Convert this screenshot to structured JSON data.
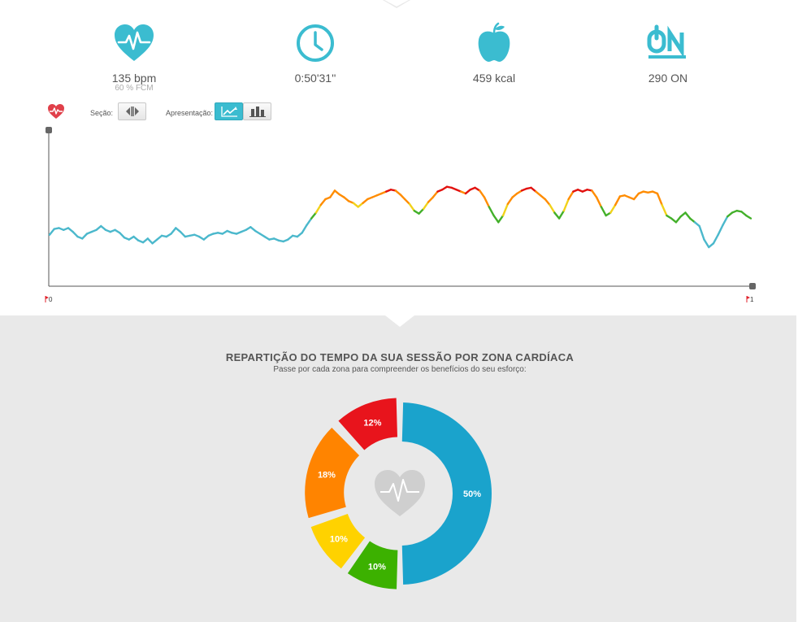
{
  "stats": [
    {
      "id": "heart-rate",
      "icon": "heart-pulse-icon",
      "value": "135 bpm",
      "sub": "60 % FCM"
    },
    {
      "id": "duration",
      "icon": "clock-icon",
      "value": "0:50'31''"
    },
    {
      "id": "calories",
      "icon": "apple-icon",
      "value": "459 kcal"
    },
    {
      "id": "on-points",
      "icon": "on-logo-icon",
      "value": "290 ON"
    }
  ],
  "toolbar": {
    "section_label": "Seção:",
    "presentation_label": "Apresentação:"
  },
  "hr_chart": {
    "x_start_label": "0",
    "x_end_label": "1"
  },
  "zones": {
    "title": "REPARTIÇÃO DO TEMPO DA SUA SESSÃO POR ZONA CARDÍACA",
    "subtitle": "Passe por cada zona para compreender os benefícios do seu esforço:"
  },
  "chart_data": [
    {
      "type": "pie",
      "title": "REPARTIÇÃO DO TEMPO DA SUA SESSÃO POR ZONA CARDÍACA",
      "categories": [
        "blue",
        "green",
        "yellow",
        "orange",
        "red"
      ],
      "values": [
        50,
        10,
        10,
        18,
        12
      ],
      "labels": [
        "50%",
        "10%",
        "10%",
        "18%",
        "12%"
      ],
      "colors": [
        "#1aa3cc",
        "#3cb100",
        "#ffd200",
        "#ff8400",
        "#e8141c"
      ]
    },
    {
      "type": "line",
      "xlim": [
        0,
        1
      ],
      "zone_colors": [
        "#4bb8cc",
        "#43b02a",
        "#f2d21a",
        "#ff8c00",
        "#e2120f"
      ],
      "values": [
        0.35,
        0.41,
        0.42,
        0.4,
        0.42,
        0.38,
        0.33,
        0.31,
        0.36,
        0.38,
        0.4,
        0.44,
        0.4,
        0.38,
        0.4,
        0.37,
        0.32,
        0.3,
        0.33,
        0.29,
        0.27,
        0.31,
        0.26,
        0.3,
        0.34,
        0.33,
        0.36,
        0.42,
        0.38,
        0.33,
        0.34,
        0.35,
        0.33,
        0.3,
        0.34,
        0.36,
        0.37,
        0.36,
        0.39,
        0.37,
        0.36,
        0.38,
        0.4,
        0.43,
        0.39,
        0.36,
        0.33,
        0.3,
        0.31,
        0.29,
        0.28,
        0.3,
        0.34,
        0.33,
        0.37,
        0.45,
        0.52,
        0.58,
        0.66,
        0.72,
        0.74,
        0.81,
        0.77,
        0.74,
        0.7,
        0.68,
        0.64,
        0.68,
        0.72,
        0.74,
        0.76,
        0.78,
        0.8,
        0.82,
        0.81,
        0.77,
        0.72,
        0.67,
        0.6,
        0.57,
        0.62,
        0.69,
        0.74,
        0.8,
        0.82,
        0.85,
        0.84,
        0.82,
        0.8,
        0.78,
        0.82,
        0.84,
        0.81,
        0.74,
        0.64,
        0.55,
        0.48,
        0.55,
        0.67,
        0.74,
        0.78,
        0.81,
        0.83,
        0.84,
        0.8,
        0.76,
        0.72,
        0.66,
        0.58,
        0.52,
        0.6,
        0.72,
        0.8,
        0.82,
        0.8,
        0.82,
        0.81,
        0.74,
        0.64,
        0.55,
        0.58,
        0.66,
        0.75,
        0.76,
        0.74,
        0.72,
        0.78,
        0.8,
        0.79,
        0.8,
        0.78,
        0.66,
        0.55,
        0.52,
        0.48,
        0.54,
        0.58,
        0.52,
        0.48,
        0.44,
        0.3,
        0.22,
        0.26,
        0.35,
        0.45,
        0.54,
        0.58,
        0.6,
        0.59,
        0.55,
        0.52
      ]
    }
  ]
}
